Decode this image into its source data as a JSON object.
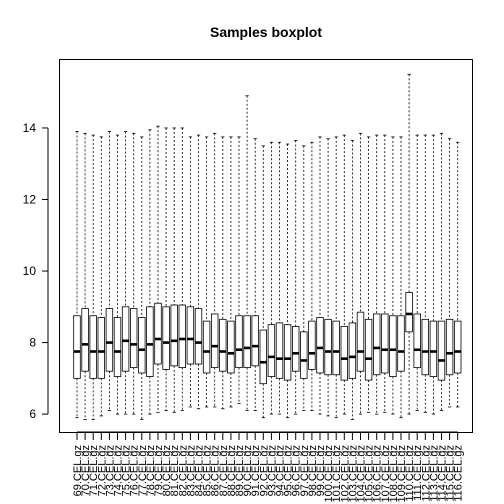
{
  "chart_data": {
    "type": "boxplot",
    "title": "Samples boxplot",
    "xlabel": "",
    "ylabel": "",
    "ylim": [
      5.5,
      15.9
    ],
    "yticks": [
      6,
      8,
      10,
      12,
      14
    ],
    "grid": false,
    "categories": [
      "69.CEL.gz",
      "70.CEL.gz",
      "71.CEL.gz",
      "72.CEL.gz",
      "73.CEL.gz",
      "74.CEL.gz",
      "75.CEL.gz",
      "76.CEL.gz",
      "77.CEL.gz",
      "78.CEL.gz",
      "79.CEL.gz",
      "80.CEL.gz",
      "81.CEL.gz",
      "82.CEL.gz",
      "83.CEL.gz",
      "84.CEL.gz",
      "85.CEL.gz",
      "86.CEL.gz",
      "87.CEL.gz",
      "88.CEL.gz",
      "89.CEL.gz",
      "90.CEL.gz",
      "91.CEL.gz",
      "92.CEL.gz",
      "93.CEL.gz",
      "94.CEL.gz",
      "95.CEL.gz",
      "96.CEL.gz",
      "97.CEL.gz",
      "98.CEL.gz",
      "99.CEL.gz",
      "100.CEL.gz",
      "101.CEL.gz",
      "102.CEL.gz",
      "103.CEL.gz",
      "104.CEL.gz",
      "105.CEL.gz",
      "106.CEL.gz",
      "107.CEL.gz",
      "108.CEL.gz",
      "109.CEL.gz",
      "110.CEL.gz",
      "111.CEL.gz",
      "112.CEL.gz",
      "113.CEL.gz",
      "114.CEL.gz",
      "115.CEL.gz",
      "116.CEL.gz"
    ],
    "series": [
      {
        "min": [
          5.9,
          5.85,
          5.85,
          5.95,
          6.1,
          6.0,
          6.0,
          6.0,
          5.85,
          6.0,
          6.05,
          6.1,
          6.05,
          6.1,
          6.2,
          6.15,
          6.2,
          6.2,
          6.15,
          6.2,
          6.3,
          6.1,
          6.1,
          5.9,
          6.0,
          6.0,
          5.9,
          6.0,
          6.1,
          6.1,
          6.0,
          5.95,
          5.9,
          6.0,
          5.85,
          6.0,
          6.05,
          6.0,
          6.05,
          6.0,
          5.9,
          6.0,
          6.1,
          6.05,
          6.0,
          6.1,
          6.2,
          6.2
        ],
        "q1": [
          7.0,
          7.2,
          7.0,
          7.0,
          7.2,
          7.05,
          7.2,
          7.3,
          7.15,
          7.05,
          7.4,
          7.25,
          7.35,
          7.3,
          7.4,
          7.4,
          7.15,
          7.3,
          7.2,
          7.15,
          7.3,
          7.3,
          7.35,
          6.85,
          7.05,
          7.0,
          6.95,
          7.2,
          7.0,
          7.25,
          7.15,
          7.1,
          7.1,
          6.95,
          7.0,
          7.2,
          6.95,
          7.1,
          7.15,
          7.05,
          7.2,
          8.3,
          7.3,
          7.1,
          7.05,
          6.95,
          7.1,
          7.15
        ],
        "median": [
          7.75,
          7.95,
          7.75,
          7.75,
          8.0,
          7.75,
          8.05,
          7.95,
          7.8,
          7.95,
          8.1,
          8.0,
          8.05,
          8.1,
          8.1,
          8.0,
          7.75,
          7.9,
          7.75,
          7.7,
          7.8,
          7.85,
          7.9,
          7.45,
          7.6,
          7.55,
          7.55,
          7.7,
          7.5,
          7.7,
          7.85,
          7.75,
          7.75,
          7.55,
          7.6,
          7.75,
          7.55,
          7.85,
          7.8,
          7.8,
          7.75,
          8.8,
          7.8,
          7.75,
          7.75,
          7.5,
          7.7,
          7.75
        ],
        "q3": [
          8.75,
          8.95,
          8.75,
          8.7,
          8.95,
          8.7,
          9.0,
          8.95,
          8.7,
          9.0,
          9.1,
          9.0,
          9.05,
          9.05,
          9.0,
          8.95,
          8.6,
          8.8,
          8.65,
          8.6,
          8.75,
          8.75,
          8.75,
          8.35,
          8.5,
          8.55,
          8.5,
          8.45,
          8.3,
          8.6,
          8.7,
          8.65,
          8.6,
          8.45,
          8.55,
          8.85,
          8.65,
          8.8,
          8.8,
          8.75,
          8.75,
          9.4,
          8.8,
          8.65,
          8.6,
          8.6,
          8.65,
          8.6
        ],
        "max": [
          13.9,
          13.85,
          13.8,
          13.75,
          13.9,
          13.8,
          13.9,
          13.85,
          13.75,
          13.95,
          14.05,
          14.0,
          14.0,
          14.0,
          13.75,
          13.8,
          13.75,
          13.85,
          13.75,
          13.75,
          13.75,
          14.9,
          13.7,
          13.5,
          13.6,
          13.6,
          13.55,
          13.65,
          13.5,
          13.6,
          13.75,
          13.7,
          13.75,
          13.8,
          13.65,
          13.85,
          13.75,
          13.8,
          13.8,
          13.75,
          13.75,
          15.5,
          13.8,
          13.8,
          13.8,
          13.85,
          13.7,
          13.6
        ]
      }
    ]
  }
}
